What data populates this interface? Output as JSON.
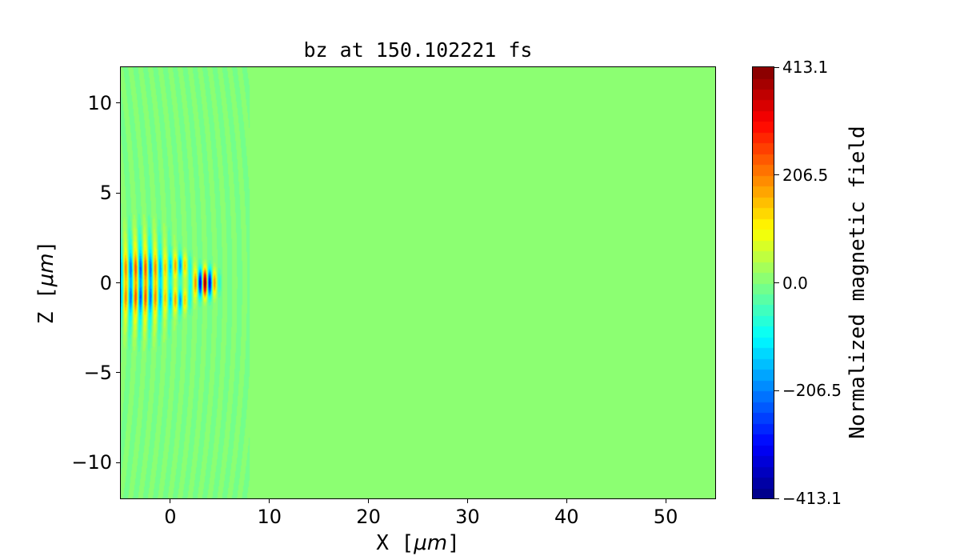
{
  "chart_data": {
    "type": "heatmap",
    "title": "bz at 150.102221 fs",
    "xlabel_prefix": "X [",
    "xlabel_unit": "μm",
    "xlabel_suffix": "]",
    "ylabel_prefix": "Z [",
    "ylabel_unit": "μm",
    "ylabel_suffix": "]",
    "xlim": [
      -5,
      55
    ],
    "ylim": [
      -12,
      12
    ],
    "xticks": [
      0,
      10,
      20,
      30,
      40,
      50
    ],
    "xtick_labels": [
      "0",
      "10",
      "20",
      "30",
      "40",
      "50"
    ],
    "yticks": [
      -10,
      -5,
      0,
      5,
      10
    ],
    "ytick_labels": [
      "−10",
      "−5",
      "0",
      "5",
      "10"
    ],
    "colormap": "jet",
    "contour_levels": 40,
    "value_range": [
      -413.1,
      413.1
    ],
    "colorbar": {
      "label": "Normalized magnetic field",
      "ticks": [
        413.1,
        206.5,
        0.0,
        -206.5,
        -413.1
      ],
      "tick_labels": [
        "413.1",
        "206.5",
        "0.0",
        "−206.5",
        "−413.1"
      ]
    },
    "background_value": 0.0,
    "pulse": {
      "x_extent": [
        -5,
        6.5
      ],
      "peak_x": 3.5,
      "peak_value": 413.1,
      "wavelength": 1.0
    }
  }
}
